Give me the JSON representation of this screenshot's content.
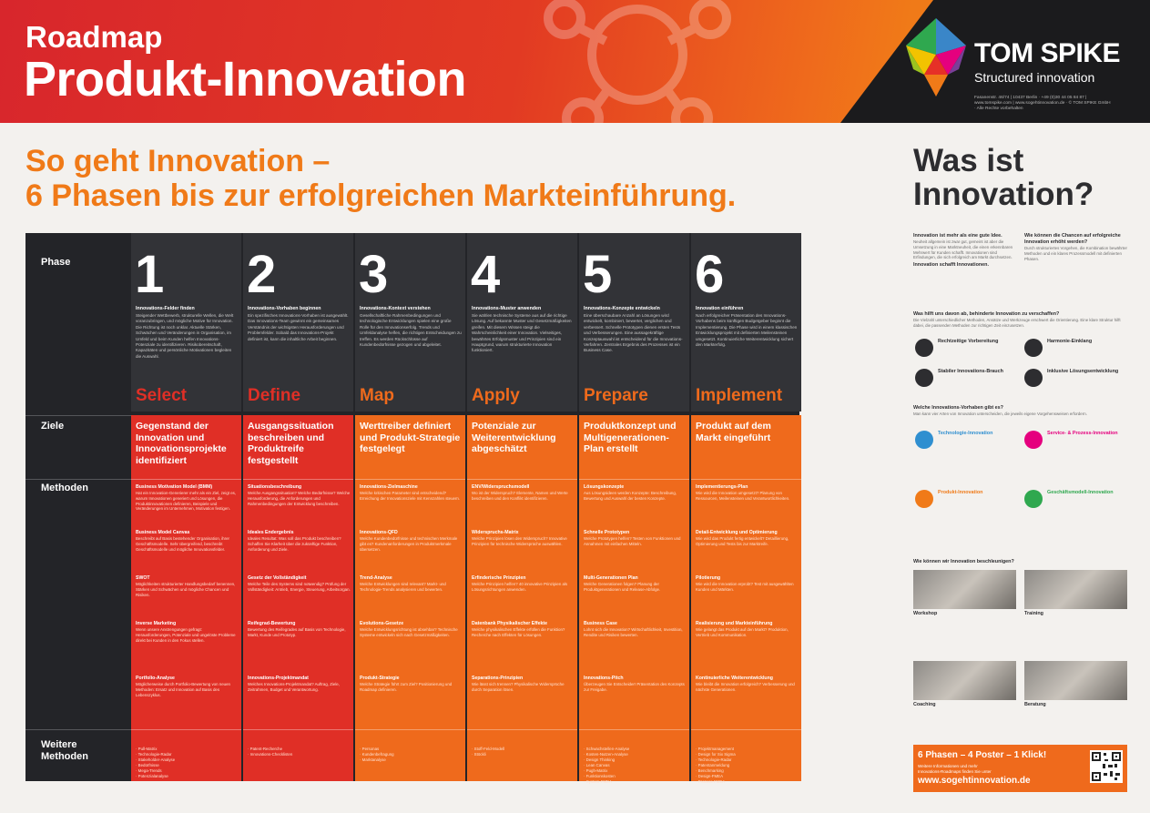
{
  "header": {
    "title_small": "Roadmap",
    "title_big": "Produkt-Innovation",
    "brand": "TOM SPIKE",
    "brand_sub": "Structured innovation",
    "address": "Fasanenstr. 46/74 | 10437 Berlin · +49 (0)30 44 05 84 87 | www.tomspike.com | www.sogehtinnovation.de · © TOM SPIKE GmbH · Alle Rechte vorbehalten"
  },
  "headline": {
    "line1": "So geht Innovation –",
    "line2": "6 Phasen bis zur erfolgreichen Markteinführung."
  },
  "row_labels": {
    "phase": "Phase",
    "ziele": "Ziele",
    "methoden": "Methoden",
    "weitere1": "Weitere",
    "weitere2": "Methoden"
  },
  "colors": {
    "dark": "#323337",
    "red": "#e02f26",
    "orange": "#ef6a1c",
    "accent": "#f07a18"
  },
  "phases": [
    {
      "num": "1",
      "title": "Innovations-Felder finden",
      "text": "Steigender Wettbewerb, strukturelle Wellen, die Welt voranzubringen, und mögliche Motive für Innovation. Die Richtung ist noch unklar. Aktuelle Stärken, Schwächen und Veränderungen in Organisation, im Umfeld und beim Kunden helfen Innovations-Potenziale zu identifizieren. Risikobereitschaft, Kapazitäten und persönliche Motivationen begleiten die Auswahl.",
      "word": "Select",
      "goal": "Gegenstand der Innovation und Innovationsprojekte identifiziert",
      "methods": [
        {
          "t": "Business Motivation Model (BMM)",
          "d": "Hat ein Innovation-Generierer mehr als ein Ziel, zeigt es, warum Innovationen generiert und Lösungen, die Produktinnovationen definieren, Beispiele und Veränderungen im Unternehmen, Motivation festigen."
        },
        {
          "t": "Business Model Canvas",
          "d": "Beschreibt auf Basis bestehender Organisation, ihrer Geschäftsmodelle. Sehr übergreifend, beschreibt Geschäftsmodelle und mögliche Innovationsfelder."
        },
        {
          "t": "SWOT",
          "d": "Möglichkeiten strukturierter Handlungsbedarf benennen, Stärken und Schwächen und mögliche Chancen und Risiken."
        },
        {
          "t": "Inverse Marketing",
          "d": "Wenn unsere Anstrengungen gefragt: Herausforderungen, Potenziale und ungelöste Probleme direkt bei Kunden in den Fokus stellen."
        },
        {
          "t": "Portfolio-Analyse",
          "d": "Möglicherweise durch Portfolio-Bewertung von neuen Methoden: Ersatz und Innovation auf Basis des Lebenszyklus."
        }
      ],
      "further": "· Pull-Matrix\n· Technologie-Radar\n· Stakeholder-Analyse\n· Bedürfnisse\n· Mega-Trends\n· Potenzialanalyse"
    },
    {
      "num": "2",
      "title": "Innovations-Vorhaben beginnen",
      "text": "Ein spezifisches Innovations-Vorhaben ist ausgewählt. Das Innovations-Team gewinnt ein gemeinsames Verständnis der wichtigsten Herausforderungen und Problemfelder. Sobald das Innovations-Projekt definiert ist, kann die inhaltliche Arbeit beginnen.",
      "word": "Define",
      "goal": "Ausgangssituation beschreiben und Produktreife festgestellt",
      "methods": [
        {
          "t": "Situationsbeschreibung",
          "d": "Welche Ausgangssituation? Welche Bedürfnisse? Welche Herausforderung, die Anforderungen und Rahmenbedingungen der Entwicklung beschreiben."
        },
        {
          "t": "Ideales Endergebnis",
          "d": "Ideales Resultat: Was soll das Produkt beschreiben? Schaffen Sie Klarheit über die zukünftige Funktion, Anforderung und Ziele."
        },
        {
          "t": "Gesetz der Vollständigkeit",
          "d": "Welche Teile des Systems sind notwendig? Prüfung der Vollständigkeit: Antrieb, Energie, Steuerung, Arbeitsorgan."
        },
        {
          "t": "Reifegrad-Bewertung",
          "d": "Bewertung des Reifegrades auf Basis von Technologie, Markt, Kunde und Prototyp."
        },
        {
          "t": "Innovations-Projektmandat",
          "d": "Welches Innovations-Projektmandat? Auftrag, Ziele, Zeitrahmen, Budget und Verantwortung."
        }
      ],
      "further": "· Patent-Recherche\n· Innovations-Checklisten"
    },
    {
      "num": "3",
      "title": "Innovations-Kontext verstehen",
      "text": "Gesellschaftliche Rahmenbedingungen und technologische Entwicklungen spielen eine große Rolle für den Innovationserfolg. Trends und Umfeldanalyse helfen, die richtigen Entscheidungen zu treffen. Es werden Rückschlüsse auf Kundenbedürfnisse gezogen und abgeleitet.",
      "word": "Map",
      "goal": "Werttreiber definiert und Produkt-Strategie festgelegt",
      "methods": [
        {
          "t": "Innovations-Zielmaschine",
          "d": "Welche kritischen Parameter sind entscheidend? Erreichung der Innovationsziele mit Kennzahlen steuern."
        },
        {
          "t": "Innovations-QFD",
          "d": "Welche Kundenbedürfnisse und technischen Merkmale gibt es? Kundenanforderungen in Produktmerkmale übersetzen."
        },
        {
          "t": "Trend-Analyse",
          "d": "Welche Entwicklungen sind relevant? Markt- und Technologie-Trends analysieren und bewerten."
        },
        {
          "t": "Evolutions-Gesetze",
          "d": "Welche Entwicklungsrichtung ist absehbar? Technische Systeme entwickeln sich nach Gesetzmäßigkeiten."
        },
        {
          "t": "Produkt-Strategie",
          "d": "Welche Strategie führt zum Ziel? Positionierung und Roadmap definieren."
        }
      ],
      "further": "· Personas\n· Kundenbefragung\n· Marktanalyse"
    },
    {
      "num": "4",
      "title": "Innovations-Muster anwenden",
      "text": "Sie wählen technische Systeme aus auf die richtige Lösung. Auf bekannte Muster und Gesetzmäßigkeiten greifen. Mit diesem Wissen steigt die Wahrscheinlichkeit einer Innovation. Vielseitiges, bewährtes Erfolgsmuster und Prinzipien sind ein Hauptgrund, warum strukturierte Innovation funktioniert.",
      "word": "Apply",
      "goal": "Potenziale zur Weiterentwicklung abgeschätzt",
      "methods": [
        {
          "t": "ENV/Widerspruchsmodell",
          "d": "Wo ist der Widerspruch? Elemente, Namen und Werte beschreiben und den Konflikt identifizieren."
        },
        {
          "t": "Widerspruchs-Matrix",
          "d": "Welche Prinzipien lösen den Widerspruch? Innovative Prinzipien für technische Widersprüche auswählen."
        },
        {
          "t": "Erfinderische Prinzipien",
          "d": "Welche Prinzipien helfen? 40 innovative Prinzipien als Lösungsrichtungen anwenden."
        },
        {
          "t": "Datenbank Physikalischer Effekte",
          "d": "Welche physikalischen Effekte erfüllen die Funktion? Recherche nach Effekten für Lösungen."
        },
        {
          "t": "Separations-Prinzipien",
          "d": "Wie lässt sich trennen? Physikalische Widersprüche durch Separation lösen."
        }
      ],
      "further": "· Stoff-Feld-Modell\n· Stöckli"
    },
    {
      "num": "5",
      "title": "Innovations-Konzepte entwickeln",
      "text": "Eine überschaubare Anzahl an Lösungen wird entwickelt, kombiniert, bewertet, verglichen und verbessert. Schnelle Prototypen dienen ersten Tests und Verbesserungen. Eine aussagekräftige Konzeptauswahl ist entscheidend für die Innovations-Verfahren. Zentrales Ergebnis des Prozesses ist ein Business Case.",
      "word": "Prepare",
      "goal": "Produktkonzept und Multigenerationen-Plan erstellt",
      "methods": [
        {
          "t": "Lösungskonzepte",
          "d": "Aus Lösungsideen werden Konzepte: Beschreibung, Bewertung und Auswahl der besten Konzepte."
        },
        {
          "t": "Schnelle Prototypen",
          "d": "Welche Prototypen helfen? Testen von Funktionen und Annahmen mit einfachen Mitteln."
        },
        {
          "t": "Multi-Generationen Plan",
          "d": "Welche Generationen folgen? Planung der Produktgenerationen und Release-Abfolge."
        },
        {
          "t": "Business Case",
          "d": "Lohnt sich die Innovation? Wirtschaftlichkeit, Investition, Rendite und Risiken bewerten."
        },
        {
          "t": "Innovations-Pitch",
          "d": "Überzeugen Sie Entscheider! Präsentation des Konzepts zur Freigabe."
        }
      ],
      "further": "· Schwachstellen-Analyse\n· Kosten-Nutzen-Analyse\n· Design Thinking\n· Lean Canvas\n· Pugh-Matrix\n· Funktionskosten\n· System-FMEA"
    },
    {
      "num": "6",
      "title": "Innovation einführen",
      "text": "Nach erfolgreicher Präsentation des Innovations-Vorhabens beim künftigen Budgetgeber beginnt die Implementierung. Die Phase wird in einem klassischen Entwicklungsprojekt mit definierten Meilensteinen umgesetzt. Kontinuierliche Weiterentwicklung sichert den Markterfolg.",
      "word": "Implement",
      "goal": "Produkt auf dem Markt eingeführt",
      "methods": [
        {
          "t": "Implementierungs-Plan",
          "d": "Wie wird die Innovation umgesetzt? Planung von Ressourcen, Meilensteinen und Verantwortlichkeiten."
        },
        {
          "t": "Detail-Entwicklung und Optimierung",
          "d": "Wie wird das Produkt fertig entwickelt? Detaillierung, Optimierung und Tests bis zur Marktreife."
        },
        {
          "t": "Pilotierung",
          "d": "Wie wird die Innovation erprobt? Test mit ausgewählten Kunden und Märkten."
        },
        {
          "t": "Realisierung und Markteinführung",
          "d": "Wie gelangt das Produkt auf den Markt? Produktion, Vertrieb und Kommunikation."
        },
        {
          "t": "Kontinuierliche Weiterentwicklung",
          "d": "Wie bleibt die Innovation erfolgreich? Verbesserung und nächste Generationen."
        }
      ],
      "further": "· Projektmanagement\n· Design for Six Sigma\n· Technologie-Radar\n· Patentanmeldung\n· Benchmarking\n· Design-FMEA\n· Prozess-FMEA"
    }
  ],
  "right": {
    "title1": "Was ist",
    "title2": "Innovation?",
    "s1t": "Innovation ist mehr als eine gute Idee.",
    "s1x": "Neuheit allgemein ist zwar gut, gemeint ist aber die Umsetzung in eine Marktneuheit, die einen erkennbaren Mehrwert für Kunden schafft. Innovationen sind Erfindungen, die sich erfolgreich am Markt durchsetzen.",
    "s1h": "Innovation schafft Innovationen.",
    "s2t": "Wie können die Chancen auf erfolgreiche Innovation erhöht werden?",
    "s2x": "Durch strukturiertes Vorgehen, die Kombination bewährter Methoden und ein klares Prozessmodell mit definierten Phasen.",
    "s3t": "Was hilft uns davon ab, behinderte Innovation zu verschaffen?",
    "s3x": "Die Vielzahl unterschiedlicher Methoden, Ansätze und Werkzeuge erschwert die Orientierung. Eine klare Struktur hilft dabei, die passenden Methoden zur richtigen Zeit einzusetzen.",
    "f1": "Rechtzeitige Vorbereitung",
    "f2": "Harmonie-Einklang",
    "f3": "Stabiler Innovations-Brauch",
    "f4": "Inklusive Lösungsentwicklung",
    "s4t": "Welche Innovations-Vorhaben gibt es?",
    "s4x": "Man kann vier Arten von Innovation unterscheiden, die jeweils eigene Vorgehensweisen erfordern.",
    "k1": "Technologie-Innovation",
    "k2": "Service- & Prozess-Innovation",
    "k3": "Produkt-Innovation",
    "k4": "Geschäftsmodell-Innovation",
    "s5t": "Wie können wir Innovation beschleunigen?",
    "p1": "Workshop",
    "p2": "Training",
    "p3": "Coaching",
    "p4": "Beratung"
  },
  "footer": {
    "big": "6 Phasen – 4 Poster – 1 Klick!",
    "small1": "Weitere Informationen und mehr",
    "small2": "Innovations-Roadmaps finden Sie unter",
    "url": "www.sogehtinnovation.de"
  }
}
